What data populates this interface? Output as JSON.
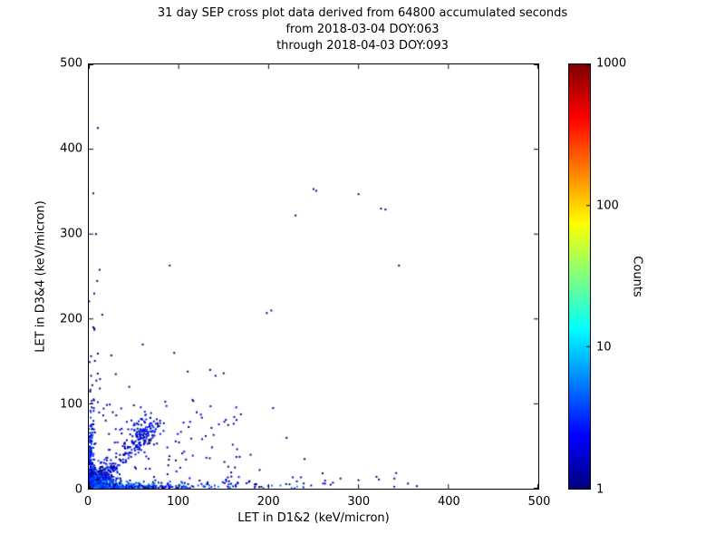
{
  "title": {
    "line1": "31 day SEP cross plot data derived from 64800 accumulated seconds",
    "line2": "from 2018-03-04 DOY:063",
    "line3": "through 2018-04-03 DOY:093"
  },
  "chart_data": {
    "type": "scatter",
    "title": "31 day SEP cross plot data derived from 64800 accumulated seconds from 2018-03-04 DOY:063 through 2018-04-03 DOY:093",
    "xlabel": "LET in D1&2 (keV/micron)",
    "ylabel": "LET in D3&4 (keV/micron)",
    "xlim": [
      0,
      500
    ],
    "ylim": [
      0,
      500
    ],
    "xticks": [
      0,
      100,
      200,
      300,
      400,
      500
    ],
    "yticks": [
      0,
      100,
      200,
      300,
      400,
      500
    ],
    "grid": false,
    "legend": "none",
    "marker_size_px": 2,
    "random_seed": 42,
    "colorbar": {
      "label": "Counts",
      "scale": "log",
      "min": 1,
      "max": 1000,
      "ticks": [
        1,
        10,
        100,
        1000
      ],
      "colormap": "jet",
      "low_color": "#000080",
      "high_color": "#800000"
    },
    "clusters": [
      {
        "kind": "gauss",
        "cx": 6,
        "cy": 6,
        "sx": 4,
        "sy": 4,
        "n": 1200,
        "cmin": 2,
        "cmax": 12
      },
      {
        "kind": "gauss",
        "cx": 13,
        "cy": 13,
        "sx": 8,
        "sy": 8,
        "n": 300,
        "cmin": 1,
        "cmax": 5
      },
      {
        "kind": "bandx",
        "x0": 0,
        "x1": 260,
        "decay": 45,
        "yspread": 3.5,
        "n": 450,
        "cmin": 1,
        "cmax": 6
      },
      {
        "kind": "bandy",
        "y0": 0,
        "y1": 115,
        "decay": 30,
        "xspread": 3,
        "n": 220,
        "cmin": 1,
        "cmax": 4
      },
      {
        "kind": "diag",
        "t0": 15,
        "t1": 80,
        "spread": 5,
        "n": 140,
        "cmin": 1,
        "cmax": 3
      },
      {
        "kind": "gauss",
        "cx": 57,
        "cy": 64,
        "sx": 10,
        "sy": 12,
        "n": 90,
        "cmin": 1,
        "cmax": 3
      },
      {
        "kind": "uniform",
        "x0": 5,
        "x1": 170,
        "y0": 5,
        "y1": 105,
        "n": 90,
        "cmin": 1,
        "cmax": 2
      },
      {
        "kind": "bandy",
        "y0": 100,
        "y1": 300,
        "decay": 90,
        "xspread": 5,
        "n": 22,
        "cmin": 1,
        "cmax": 1
      },
      {
        "kind": "bandx",
        "x0": 150,
        "x1": 360,
        "decay": 150,
        "yspread": 8,
        "n": 55,
        "cmin": 1,
        "cmax": 2
      }
    ],
    "outlier_points": [
      [
        10,
        425
      ],
      [
        250,
        353
      ],
      [
        253,
        351
      ],
      [
        300,
        347
      ],
      [
        325,
        330
      ],
      [
        330,
        329
      ],
      [
        230,
        322
      ],
      [
        90,
        263
      ],
      [
        345,
        263
      ],
      [
        198,
        207
      ],
      [
        203,
        210
      ],
      [
        110,
        138
      ],
      [
        135,
        140
      ],
      [
        141,
        133
      ],
      [
        150,
        136
      ],
      [
        8,
        300
      ],
      [
        5,
        348
      ],
      [
        12,
        258
      ],
      [
        6,
        230
      ],
      [
        15,
        205
      ],
      [
        60,
        170
      ],
      [
        95,
        160
      ],
      [
        25,
        157
      ],
      [
        30,
        135
      ],
      [
        45,
        120
      ],
      [
        120,
        90
      ],
      [
        205,
        95
      ],
      [
        155,
        75
      ],
      [
        220,
        60
      ],
      [
        130,
        62
      ],
      [
        180,
        40
      ],
      [
        240,
        35
      ],
      [
        190,
        22
      ],
      [
        260,
        18
      ],
      [
        280,
        12
      ],
      [
        300,
        10
      ],
      [
        320,
        14
      ],
      [
        340,
        12
      ],
      [
        355,
        6
      ],
      [
        365,
        3
      ]
    ]
  }
}
